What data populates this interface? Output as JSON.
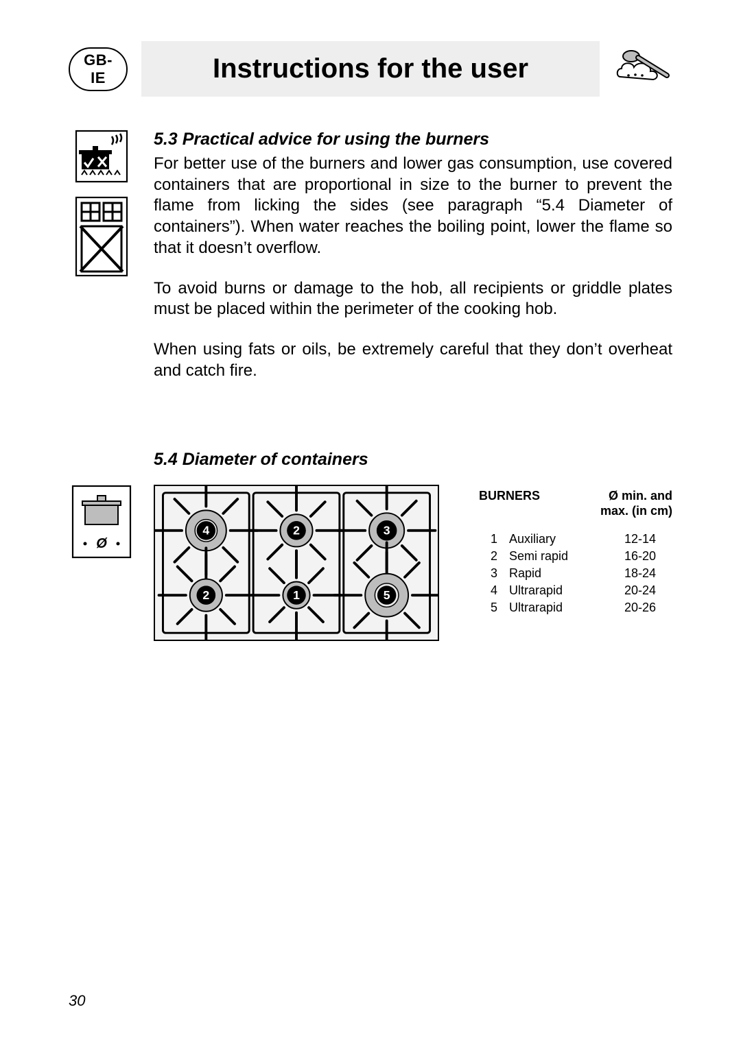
{
  "header": {
    "lang_badge": "GB-IE",
    "title": "Instructions for the user"
  },
  "section53": {
    "heading": "5.3 Practical advice for using the burners",
    "p1": "For better use of the burners and lower gas consumption, use covered containers that are proportional in size to the burner to prevent the flame from licking the sides (see paragraph “5.4 Diameter of containers”). When water reaches the boiling point, lower the flame so that it doesn’t overflow.",
    "p2": "To avoid burns or damage to the hob, all recipients or griddle plates must be placed within the perimeter of the cooking hob.",
    "p3": "When using fats or oils, be extremely careful that they don’t overheat and catch fire."
  },
  "section54": {
    "heading": "5.4 Diameter of containers",
    "table_header_left": "BURNERS",
    "table_header_right_line1": "Ø min. and",
    "table_header_right_line2": "max. (in cm)",
    "rows": [
      {
        "n": "1",
        "name": "Auxiliary",
        "range": "12-14"
      },
      {
        "n": "2",
        "name": "Semi rapid",
        "range": "16-20"
      },
      {
        "n": "3",
        "name": "Rapid",
        "range": "18-24"
      },
      {
        "n": "4",
        "name": "Ultrarapid",
        "range": "20-24"
      },
      {
        "n": "5",
        "name": "Ultrarapid",
        "range": "20-26"
      }
    ],
    "hob_labels": {
      "tl": "4",
      "tc": "2",
      "tr": "3",
      "bl": "2",
      "bc": "1",
      "br": "5"
    },
    "pot_label": "Ø"
  },
  "page_number": "30",
  "colors": {
    "title_bg": "#eeeeee",
    "text": "#000000",
    "bg": "#ffffff",
    "hob_bg": "#f3f3f3",
    "burner_fill": "#bdbdbd",
    "burner_inner": "#e8e8e8",
    "burner_label_bg": "#000000",
    "burner_label_text": "#ffffff"
  }
}
